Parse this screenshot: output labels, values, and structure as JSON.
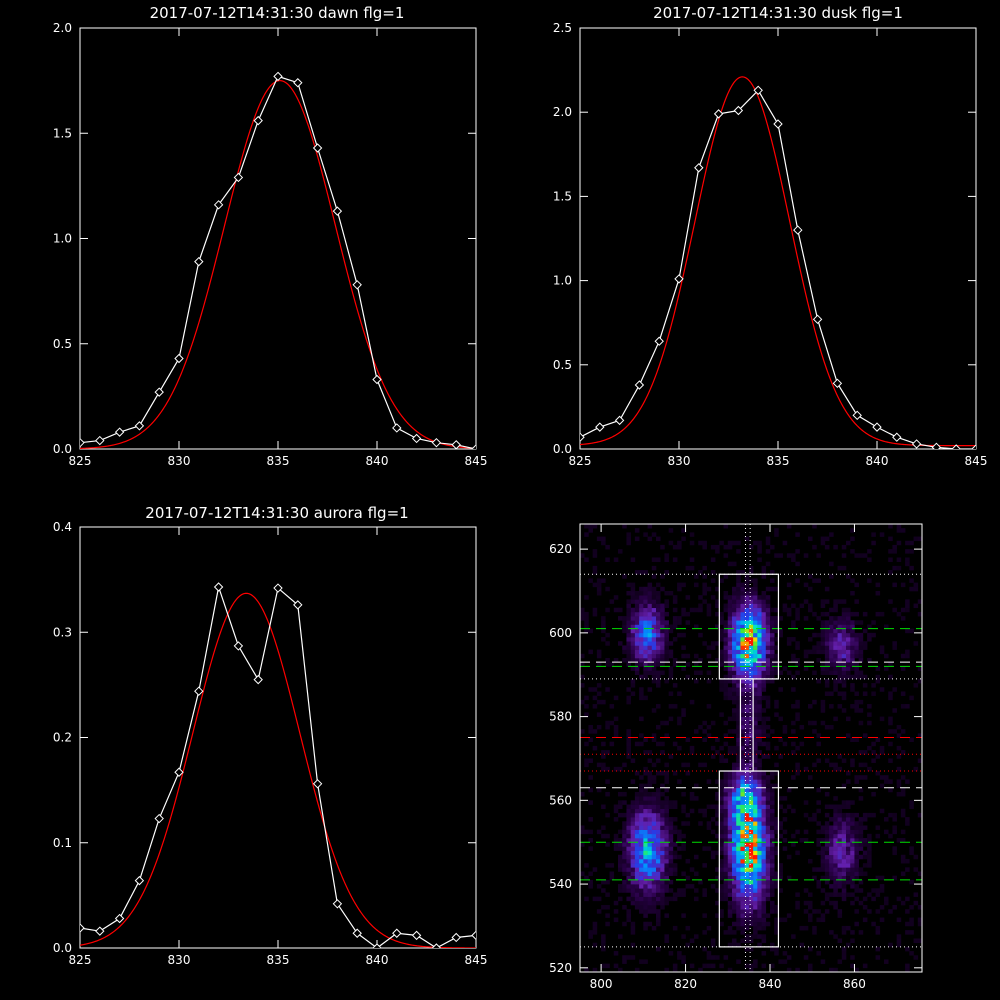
{
  "chart_data": [
    {
      "type": "line",
      "title": "2017-07-12T14:31:30 dawn flg=1",
      "xlim": [
        825,
        845
      ],
      "ylim": [
        0.0,
        2.0
      ],
      "x_ticks": [
        "825",
        "830",
        "835",
        "840",
        "845"
      ],
      "y_ticks": [
        "0.0",
        "0.5",
        "1.0",
        "1.5",
        "2.0"
      ],
      "series": [
        {
          "style": "white-diamond-line",
          "x": [
            825,
            826,
            827,
            828,
            829,
            830,
            831,
            832,
            833,
            834,
            835,
            836,
            837,
            838,
            839,
            840,
            841,
            842,
            843,
            844,
            845
          ],
          "y": [
            0.03,
            0.04,
            0.08,
            0.11,
            0.27,
            0.43,
            0.89,
            1.16,
            1.29,
            1.56,
            1.77,
            1.74,
            1.43,
            1.13,
            0.78,
            0.33,
            0.1,
            0.05,
            0.03,
            0.02,
            0.0
          ]
        },
        {
          "style": "red-gaussian-fit",
          "gaussian": {
            "amp": 1.75,
            "center": 835.1,
            "sigma": 2.8
          },
          "offset": 0.0
        }
      ],
      "colors": {
        "data": "#ffffff",
        "fit": "#ff0000"
      }
    },
    {
      "type": "line",
      "title": "2017-07-12T14:31:30 dusk flg=1",
      "xlim": [
        825,
        845
      ],
      "ylim": [
        0.0,
        2.5
      ],
      "x_ticks": [
        "825",
        "830",
        "835",
        "840",
        "845"
      ],
      "y_ticks": [
        "0.0",
        "0.5",
        "1.0",
        "1.5",
        "2.0",
        "2.5"
      ],
      "series": [
        {
          "style": "white-diamond-line",
          "x": [
            825,
            826,
            827,
            828,
            829,
            830,
            831,
            832,
            833,
            834,
            835,
            836,
            837,
            838,
            839,
            840,
            841,
            842,
            843,
            844,
            845
          ],
          "y": [
            0.07,
            0.13,
            0.17,
            0.38,
            0.64,
            1.01,
            1.67,
            1.99,
            2.01,
            2.13,
            1.93,
            1.3,
            0.77,
            0.39,
            0.2,
            0.13,
            0.07,
            0.03,
            0.01,
            0.0,
            0.0
          ]
        },
        {
          "style": "red-gaussian-fit",
          "gaussian": {
            "amp": 2.19,
            "center": 833.2,
            "sigma": 2.4
          },
          "offset": 0.02
        }
      ],
      "colors": {
        "data": "#ffffff",
        "fit": "#ff0000"
      }
    },
    {
      "type": "line",
      "title": "2017-07-12T14:31:30 aurora flg=1",
      "xlim": [
        825,
        845
      ],
      "ylim": [
        0.0,
        0.4
      ],
      "x_ticks": [
        "825",
        "830",
        "835",
        "840",
        "845"
      ],
      "y_ticks": [
        "0.0",
        "0.1",
        "0.2",
        "0.3",
        "0.4"
      ],
      "series": [
        {
          "style": "white-diamond-line",
          "x": [
            825,
            826,
            827,
            828,
            829,
            830,
            831,
            832,
            833,
            834,
            835,
            836,
            837,
            838,
            839,
            840,
            841,
            842,
            843,
            844,
            845
          ],
          "y": [
            0.019,
            0.016,
            0.028,
            0.064,
            0.123,
            0.167,
            0.244,
            0.343,
            0.287,
            0.255,
            0.342,
            0.326,
            0.156,
            0.042,
            0.014,
            0.0,
            0.014,
            0.012,
            0.0,
            0.01,
            0.012
          ]
        },
        {
          "style": "red-gaussian-fit",
          "gaussian": {
            "amp": 0.337,
            "center": 833.4,
            "sigma": 2.7
          },
          "offset": 0.0
        }
      ],
      "colors": {
        "data": "#ffffff",
        "fit": "#ff0000"
      }
    },
    {
      "type": "heatmap",
      "title": "",
      "xlim": [
        795,
        876
      ],
      "ylim": [
        519,
        626
      ],
      "x_ticks": [
        "800",
        "820",
        "840",
        "860"
      ],
      "y_ticks": [
        "520",
        "540",
        "560",
        "580",
        "600",
        "620"
      ],
      "blobs": [
        {
          "x": 835,
          "y": 598,
          "sx": 2.6,
          "sy": 5.5,
          "amp": 0.95
        },
        {
          "x": 835,
          "y": 548,
          "sx": 2.6,
          "sy": 7.5,
          "amp": 1.0
        },
        {
          "x": 834,
          "y": 560,
          "sx": 2.4,
          "sy": 4,
          "amp": 0.6
        },
        {
          "x": 811,
          "y": 548,
          "sx": 2.8,
          "sy": 6,
          "amp": 0.6
        },
        {
          "x": 811,
          "y": 600,
          "sx": 2.5,
          "sy": 4.5,
          "amp": 0.45
        },
        {
          "x": 857,
          "y": 597,
          "sx": 2.5,
          "sy": 4,
          "amp": 0.25
        },
        {
          "x": 857,
          "y": 548,
          "sx": 2.5,
          "sy": 5,
          "amp": 0.25
        },
        {
          "x": 835,
          "y": 578,
          "sx": 1.8,
          "sy": 6,
          "amp": 0.15
        }
      ],
      "boxes": [
        {
          "x0": 828,
          "x1": 842,
          "y0": 589,
          "y1": 614
        },
        {
          "x0": 828,
          "x1": 842,
          "y0": 525,
          "y1": 567
        },
        {
          "x0": 833,
          "x1": 836,
          "y0": 567,
          "y1": 589
        }
      ],
      "dotted_vertical_x": [
        834.2,
        835.3
      ],
      "hlines": [
        {
          "y": 614,
          "color": "#ffffff",
          "style": "dotted"
        },
        {
          "y": 589,
          "color": "#ffffff",
          "style": "dotted"
        },
        {
          "y": 525,
          "color": "#ffffff",
          "style": "dotted"
        },
        {
          "y": 601,
          "color": "#00dd00",
          "style": "dashed"
        },
        {
          "y": 593,
          "color": "#ffffff",
          "style": "dashed"
        },
        {
          "y": 592,
          "color": "#00dd00",
          "style": "dashed"
        },
        {
          "y": 575,
          "color": "#ff0000",
          "style": "dashed"
        },
        {
          "y": 571,
          "color": "#ff0000",
          "style": "dotted"
        },
        {
          "y": 567,
          "color": "#ff0000",
          "style": "dotted"
        },
        {
          "y": 563,
          "color": "#ffffff",
          "style": "dashed"
        },
        {
          "y": 550,
          "color": "#00dd00",
          "style": "dashed"
        },
        {
          "y": 541,
          "color": "#00dd00",
          "style": "dashed"
        }
      ]
    }
  ]
}
